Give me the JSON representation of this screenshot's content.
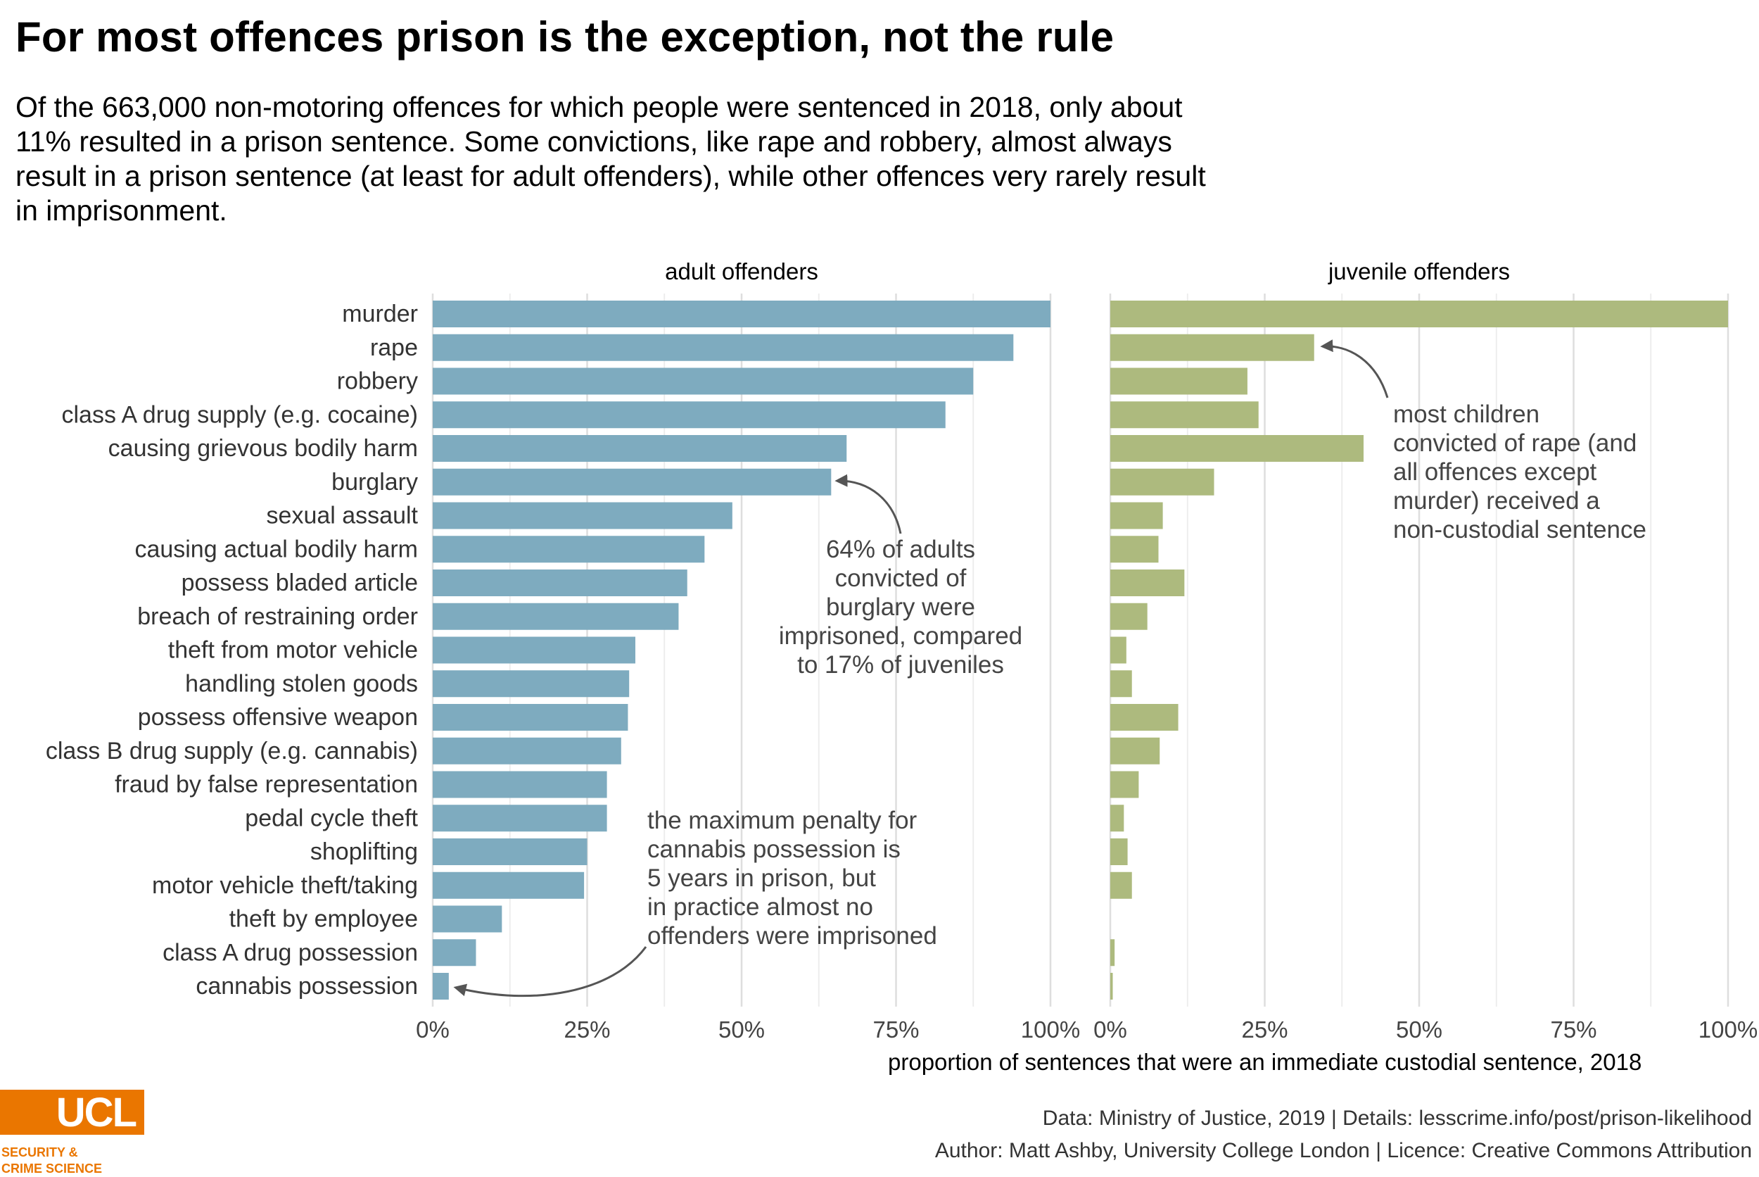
{
  "title": "For most offences prison is the exception, not the rule",
  "subtitle": "Of the 663,000 non-motoring offences for which people were sentenced in 2018, only about 11% resulted in a prison sentence. Some convictions, like rape and robbery, almost always result in a prison sentence (at least for adult offenders), while other offences very rarely result in imprisonment.",
  "chart_data": {
    "type": "bar",
    "orientation": "horizontal",
    "categories": [
      "murder",
      "rape",
      "robbery",
      "class A drug supply (e.g. cocaine)",
      "causing grievous bodily harm",
      "burglary",
      "sexual assault",
      "causing actual bodily harm",
      "possess bladed article",
      "breach of restraining order",
      "theft from motor vehicle",
      "handling stolen goods",
      "possess offensive weapon",
      "class B drug supply (e.g. cannabis)",
      "fraud by false representation",
      "pedal cycle theft",
      "shoplifting",
      "motor vehicle theft/taking",
      "theft by employee",
      "class A drug possession",
      "cannabis possession"
    ],
    "panels": [
      {
        "name": "adult offenders",
        "color": "#7eabbf",
        "values": [
          1.0,
          0.94,
          0.875,
          0.83,
          0.67,
          0.645,
          0.485,
          0.44,
          0.412,
          0.398,
          0.328,
          0.318,
          0.316,
          0.305,
          0.282,
          0.282,
          0.25,
          0.245,
          0.112,
          0.07,
          0.026
        ]
      },
      {
        "name": "juvenile offenders",
        "color": "#adba7e",
        "values": [
          1.0,
          0.33,
          0.222,
          0.24,
          0.41,
          0.168,
          0.085,
          0.078,
          0.12,
          0.06,
          0.026,
          0.035,
          0.11,
          0.08,
          0.046,
          0.022,
          0.028,
          0.035,
          0.0,
          0.007,
          0.004
        ]
      }
    ],
    "xlim": [
      0,
      1
    ],
    "tick_labels": [
      "0%",
      "25%",
      "50%",
      "75%",
      "100%"
    ],
    "xlabel": "proportion of sentences that were an immediate custodial sentence, 2018",
    "ylabel": "",
    "grid": true,
    "annotations": [
      {
        "panel": "adult offenders",
        "target": "burglary",
        "lines": [
          "64% of adults",
          "convicted of",
          "burglary were",
          "imprisoned, compared",
          "to 17% of juveniles"
        ]
      },
      {
        "panel": "adult offenders",
        "target": "cannabis possession",
        "lines": [
          "the maximum penalty for",
          "cannabis possession is",
          "5 years in prison, but",
          "in practice almost no",
          "offenders were imprisoned"
        ]
      },
      {
        "panel": "juvenile offenders",
        "target": "rape",
        "lines": [
          "most children",
          "convicted of rape (and",
          "all offences except",
          "murder) received a",
          "non-custodial sentence"
        ]
      }
    ]
  },
  "footer": {
    "line1": "Data: Ministry of Justice, 2019 |  Details: lesscrime.info/post/prison-likelihood",
    "line2": "Author: Matt Ashby, University College London |  Licence: Creative Commons Attribution"
  },
  "logo": {
    "text": "UCL",
    "sub1": "SECURITY &",
    "sub2": "CRIME SCIENCE",
    "color": "#ea7600"
  }
}
